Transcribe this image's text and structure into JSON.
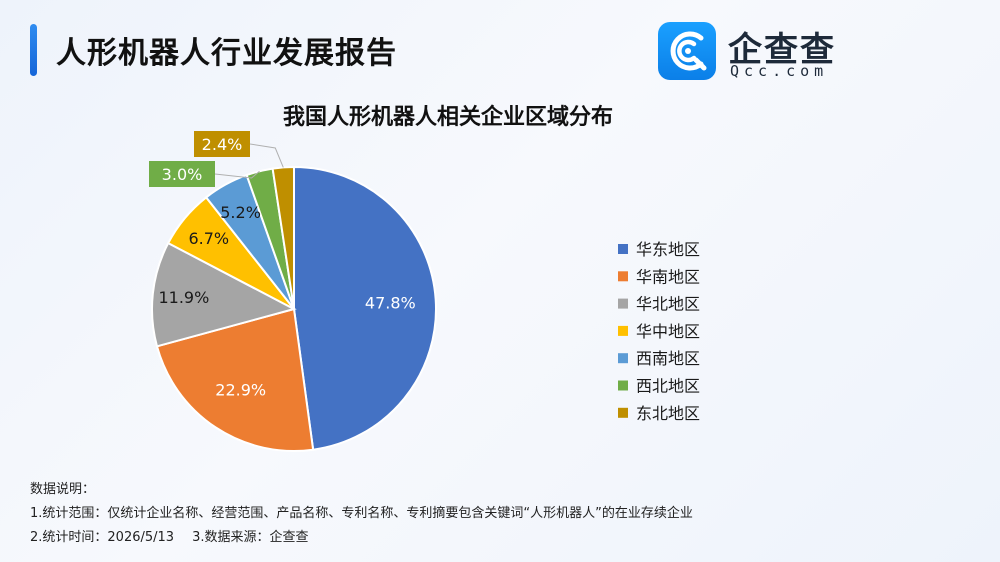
{
  "header": {
    "title": "人形机器人行业发展报告"
  },
  "logo": {
    "name": "企查查",
    "domain": "Qcc.com",
    "icon": "qcc-logo-icon"
  },
  "chart_data": {
    "type": "pie",
    "title": "我国人形机器人相关企业区域分布",
    "slices": [
      {
        "label": "华东地区",
        "value": 47.8,
        "display": "47.8%",
        "color": "#4472C4"
      },
      {
        "label": "华南地区",
        "value": 22.9,
        "display": "22.9%",
        "color": "#ED7D31"
      },
      {
        "label": "华北地区",
        "value": 11.9,
        "display": "11.9%",
        "color": "#A5A5A5"
      },
      {
        "label": "华中地区",
        "value": 6.7,
        "display": "6.7%",
        "color": "#FFC000"
      },
      {
        "label": "西南地区",
        "value": 5.2,
        "display": "5.2%",
        "color": "#5B9BD5"
      },
      {
        "label": "西北地区",
        "value": 3.0,
        "display": "3.0%",
        "color": "#70AD47"
      },
      {
        "label": "东北地区",
        "value": 2.4,
        "display": "2.4%",
        "color": "#BF8F00"
      }
    ],
    "legend_position": "right"
  },
  "notes": {
    "heading": "数据说明：",
    "line1": "1.统计范围：仅统计企业名称、经营范围、产品名称、专利名称、专利摘要包含关键词“人形机器人”的在业存续企业",
    "time": "2.统计时间：2026/5/13",
    "source": "3.数据来源：企查查"
  }
}
